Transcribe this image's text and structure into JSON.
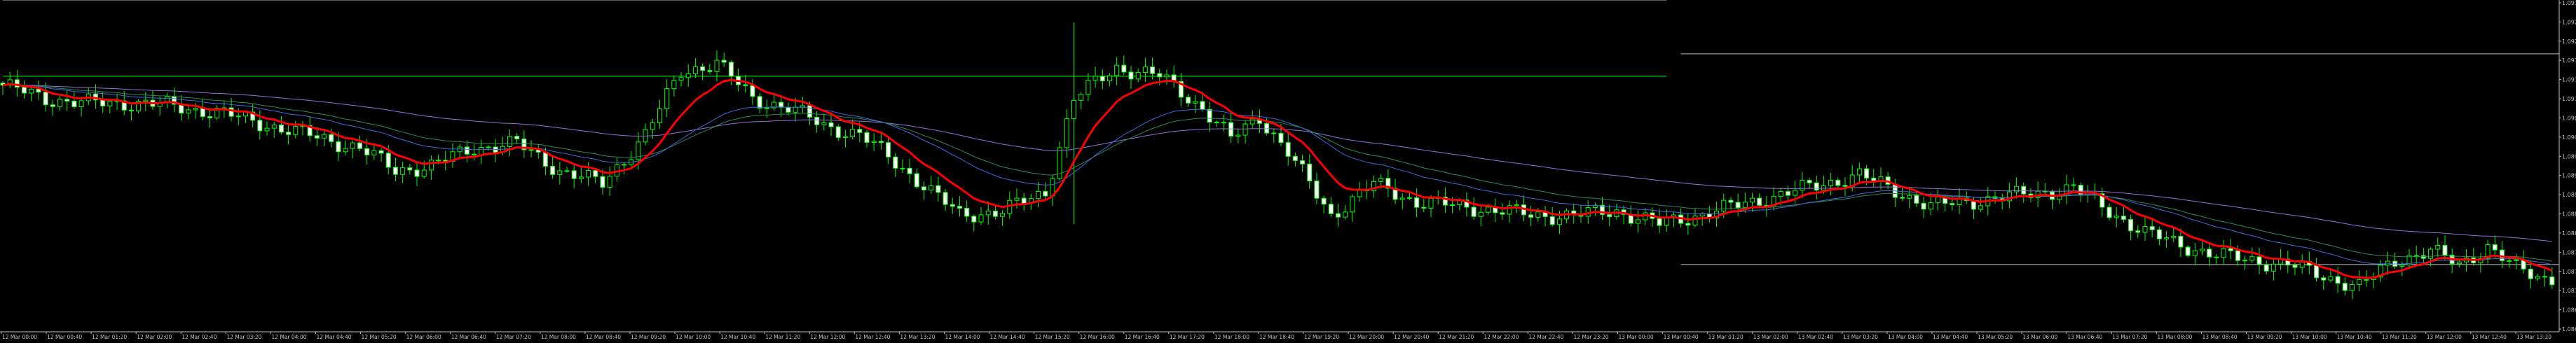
{
  "chart_data": {
    "type": "line",
    "title": "",
    "xlabel": "",
    "ylabel": "",
    "ylim": [
      1.0862,
      1.0936
    ],
    "grid": false,
    "legend": "none",
    "colors": {
      "background": "#000000",
      "candles": "#00ff00",
      "axis": "#c0c0c0",
      "text": "#c0c0c0",
      "hlines": "#c0c0c0",
      "level_line": "#00ff00",
      "ma_fast": "#ff0000",
      "ma_mid": "#2e8b57",
      "ma_blue": "#4169e1",
      "ma_slow": "#9370db"
    },
    "y_ticks": [
      "1.09305",
      "1.09265",
      "1.09225",
      "1.09185",
      "1.09145",
      "1.09105",
      "1.09065",
      "1.09025",
      "1.08985",
      "1.08945",
      "1.08905",
      "1.08865",
      "1.08825",
      "1.08785",
      "1.08745",
      "1.08705",
      "1.08665",
      "1.08625"
    ],
    "x_ticks": [
      "12 Mar 00:00",
      "12 Mar 00:40",
      "12 Mar 01:20",
      "12 Mar 02:00",
      "12 Mar 02:40",
      "12 Mar 03:20",
      "12 Mar 04:00",
      "12 Mar 04:40",
      "12 Mar 05:20",
      "12 Mar 06:00",
      "12 Mar 06:40",
      "12 Mar 07:20",
      "12 Mar 08:00",
      "12 Mar 08:40",
      "12 Mar 09:20",
      "12 Mar 10:00",
      "12 Mar 10:40",
      "12 Mar 11:20",
      "12 Mar 12:00",
      "12 Mar 12:40",
      "12 Mar 13:20",
      "12 Mar 14:00",
      "12 Mar 14:40",
      "12 Mar 15:20",
      "12 Mar 16:00",
      "12 Mar 16:40",
      "12 Mar 17:20",
      "12 Mar 18:00",
      "12 Mar 18:40",
      "12 Mar 19:20",
      "12 Mar 20:00",
      "12 Mar 20:40",
      "12 Mar 21:20",
      "12 Mar 22:00",
      "12 Mar 22:40",
      "12 Mar 23:20",
      "13 Mar 00:00",
      "13 Mar 00:40",
      "13 Mar 01:20",
      "13 Mar 02:00",
      "13 Mar 02:40",
      "13 Mar 03:20",
      "13 Mar 04:00",
      "13 Mar 04:40",
      "13 Mar 05:20",
      "13 Mar 06:00",
      "13 Mar 06:40",
      "13 Mar 07:20",
      "13 Mar 08:00",
      "13 Mar 08:40",
      "13 Mar 09:20",
      "13 Mar 10:00",
      "13 Mar 10:40",
      "13 Mar 11:20",
      "13 Mar 12:00",
      "13 Mar 12:40",
      "13 Mar 13:20"
    ],
    "candle_interval_minutes": 10,
    "close_keypoints": {
      "bar_index": [
        0,
        6,
        12,
        20,
        30,
        40,
        50,
        55,
        60,
        66,
        72,
        78,
        84,
        90,
        95,
        100,
        105,
        110,
        115,
        120,
        128,
        134,
        140,
        146,
        150,
        156,
        162,
        168,
        172,
        176,
        180,
        186,
        192,
        198,
        204,
        210,
        214,
        220,
        226,
        232,
        240,
        250,
        260,
        270,
        280,
        290,
        300,
        310,
        320,
        330,
        335,
        340,
        344,
        348,
        352,
        356
      ],
      "close": [
        1.0917,
        1.0914,
        1.0913,
        1.0913,
        1.0911,
        1.0907,
        1.0903,
        1.0898,
        1.0899,
        1.0903,
        1.0904,
        1.0898,
        1.0895,
        1.0906,
        1.092,
        1.0922,
        1.0914,
        1.0912,
        1.0908,
        1.0906,
        1.0896,
        1.0888,
        1.0889,
        1.0893,
        1.0914,
        1.0921,
        1.0919,
        1.0912,
        1.0905,
        1.091,
        1.0902,
        1.0888,
        1.0895,
        1.0891,
        1.089,
        1.0889,
        1.0888,
        1.0888,
        1.0889,
        1.0886,
        1.0889,
        1.0893,
        1.0897,
        1.089,
        1.0892,
        1.0894,
        1.0884,
        1.0879,
        1.0877,
        1.0872,
        1.0878,
        1.088,
        1.0877,
        1.0881,
        1.0876,
        1.0874
      ]
    },
    "level_lines": [
      {
        "price": 1.0936,
        "from_bar": 0,
        "to_bar": 233
      },
      {
        "price": 1.0919,
        "from_bar": 0,
        "to_bar": 233
      },
      {
        "price": 1.0924,
        "from_bar": 235,
        "to_bar": 358
      },
      {
        "price": 1.0877,
        "from_bar": 235,
        "to_bar": 358
      }
    ],
    "moving_averages": [
      {
        "key": "ma_fast",
        "period": 10,
        "width": 3
      },
      {
        "key": "ma_blue",
        "period": 28,
        "width": 1
      },
      {
        "key": "ma_mid",
        "period": 40,
        "width": 1
      },
      {
        "key": "ma_slow",
        "period": 100,
        "width": 1
      }
    ]
  }
}
